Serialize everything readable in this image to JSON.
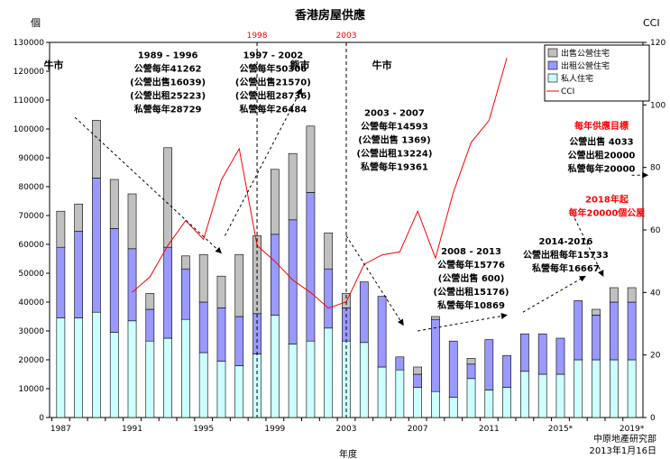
{
  "chart_data": {
    "type": "bar",
    "title": "香港房屋供應",
    "y_left_label": "個",
    "y_right_label": "CCI",
    "xlabel": "年度",
    "stacked": true,
    "years": [
      1987,
      1988,
      1989,
      1990,
      1991,
      1992,
      1993,
      1994,
      1995,
      1996,
      1997,
      1998,
      1999,
      2000,
      2001,
      2002,
      2003,
      2004,
      2005,
      2006,
      2007,
      2008,
      2009,
      2010,
      2011,
      2012,
      2013,
      2014,
      2015,
      2016,
      2017,
      2018,
      2019
    ],
    "x_tick_labels": [
      {
        "year": 1987,
        "label": "1987"
      },
      {
        "year": 1991,
        "label": "1991"
      },
      {
        "year": 1995,
        "label": "1995"
      },
      {
        "year": 1999,
        "label": "1999"
      },
      {
        "year": 2003,
        "label": "2003"
      },
      {
        "year": 2007,
        "label": "2007"
      },
      {
        "year": 2011,
        "label": "2011"
      },
      {
        "year": 2015,
        "label": "2015*"
      },
      {
        "year": 2019,
        "label": "2019*"
      }
    ],
    "series": [
      {
        "name": "私人住宅",
        "color": "#ccffff",
        "values": [
          34500,
          34500,
          36500,
          29500,
          33500,
          26500,
          27500,
          34000,
          22500,
          19500,
          18000,
          22000,
          35500,
          25500,
          26500,
          31000,
          26500,
          26000,
          17500,
          16500,
          10500,
          9000,
          7000,
          13500,
          9500,
          10500,
          16000,
          15000,
          15000,
          20000,
          20000,
          20000,
          20000
        ]
      },
      {
        "name": "出租公營住宅",
        "color": "#9999ff",
        "values": [
          24500,
          30000,
          46500,
          36000,
          25000,
          11000,
          31500,
          17500,
          17500,
          18500,
          17000,
          14000,
          28000,
          43000,
          51500,
          20500,
          11500,
          21000,
          24500,
          4500,
          4500,
          25000,
          19500,
          5000,
          17500,
          11000,
          13000,
          14000,
          12500,
          20500,
          15500,
          20000,
          20000
        ]
      },
      {
        "name": "出售公營住宅",
        "color": "#c0c0c0",
        "values": [
          12500,
          9500,
          20000,
          17000,
          19000,
          5500,
          34500,
          4500,
          16500,
          11000,
          21500,
          27000,
          22500,
          23000,
          23000,
          12500,
          5000,
          0,
          0,
          0,
          2500,
          1000,
          0,
          2000,
          0,
          0,
          0,
          0,
          0,
          0,
          2000,
          5000,
          5000
        ]
      }
    ],
    "cci": {
      "name": "CCI",
      "color": "#ff0000",
      "points": [
        [
          1991,
          40
        ],
        [
          1992,
          45
        ],
        [
          1993,
          55
        ],
        [
          1994,
          63
        ],
        [
          1995,
          57
        ],
        [
          1996,
          76
        ],
        [
          1997,
          86
        ],
        [
          1998,
          55
        ],
        [
          1999,
          50
        ],
        [
          2000,
          44
        ],
        [
          2001,
          40
        ],
        [
          2002,
          35
        ],
        [
          2003,
          37
        ],
        [
          2004,
          49
        ],
        [
          2005,
          52
        ],
        [
          2006,
          53
        ],
        [
          2007,
          66
        ],
        [
          2008,
          51
        ],
        [
          2009,
          72
        ],
        [
          2010,
          88
        ],
        [
          2011,
          95
        ],
        [
          2012,
          115
        ]
      ]
    },
    "y_left": {
      "min": 0,
      "max": 130000,
      "step": 10000
    },
    "y_right": {
      "min": 0,
      "max": 120,
      "step": 20
    },
    "legend_position": "top-right",
    "market_labels": [
      {
        "text": "牛市",
        "year": 1986.6,
        "value": 121000
      },
      {
        "text": "熊市",
        "year": 2000.4,
        "value": 121000
      },
      {
        "text": "牛市",
        "year": 2005.0,
        "value": 121000
      }
    ],
    "vlines": [
      {
        "year": 1998,
        "label": "1998"
      },
      {
        "year": 2003,
        "label": "2003"
      }
    ],
    "annotations": [
      {
        "lines": [
          "1989 - 1996",
          "公營每年41262",
          "(公營出售16039)",
          "(公營出租25223)",
          "私營每年28729"
        ],
        "year": 1993.0,
        "value": 124500,
        "color": "#000000"
      },
      {
        "lines": [
          "1997 - 2002",
          "公營每年50306",
          "(公營出售21570)",
          "(公營出租28736)",
          "私營每年26484"
        ],
        "year": 1998.9,
        "value": 124500,
        "color": "#000000"
      },
      {
        "lines": [
          "2003 - 2007",
          "公營每年14593",
          "(公營出售  1369)",
          "(公營出租13224)",
          "私營每年19361"
        ],
        "year": 2005.7,
        "value": 104500,
        "color": "#000000"
      },
      {
        "lines": [
          "2008 - 2013",
          "公營每年15776",
          "(公營出售  600)",
          "(公營出租15176)",
          "私營每年10869"
        ],
        "year": 2010.0,
        "value": 56500,
        "color": "#000000"
      },
      {
        "lines": [
          "2014-2016",
          "公營出租每年15733",
          "私營每年16667"
        ],
        "year": 2015.3,
        "value": 60000,
        "color": "#000000"
      },
      {
        "lines": [
          "每年供應目標"
        ],
        "year": 2017.3,
        "value": 100000,
        "color": "#ff0000"
      },
      {
        "lines": [
          "公營出售   4033",
          "公營出租20000",
          "私營每年20000"
        ],
        "year": 2017.3,
        "value": 94500,
        "color": "#000000"
      },
      {
        "lines": [
          "2018年起",
          "每年20000個公屋"
        ],
        "year": 2017.6,
        "value": 74500,
        "color": "#ff0000"
      }
    ],
    "footer": [
      "中原地產研究部",
      "2013年1月16日"
    ]
  }
}
